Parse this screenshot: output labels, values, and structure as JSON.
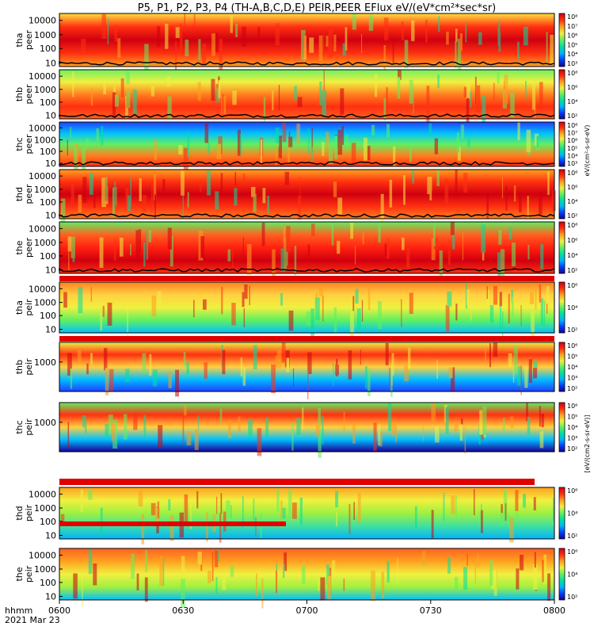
{
  "chart_data": {
    "type": "heatmap",
    "title": "P5, P1, P2, P3, P4 (TH-A,B,C,D,E) PEIR,PEER EFlux eV/(eV*cm²*sec*sr)",
    "time_label": "hhmm",
    "date_label": "2021 Mar 23",
    "x_ticks": [
      "0600",
      "0630",
      "0700",
      "0730",
      "0800"
    ],
    "xlim": [
      "06:00",
      "08:00"
    ],
    "colorbar_unit_electron": "eV/(cm²-s-sr-eV)",
    "colorbar_unit_ion": "[eV/(cm2-s-sr-eV)]",
    "panels": [
      {
        "name": "tha peer",
        "y_ticks": [
          "10000",
          "1000",
          "100",
          "10"
        ],
        "cb_ticks": [
          "10⁸",
          "10⁷",
          "10⁶",
          "10⁵",
          "10⁴",
          "10³"
        ],
        "ylim": [
          7,
          25000
        ],
        "log_y": true
      },
      {
        "name": "thb peer",
        "y_ticks": [
          "10000",
          "1000",
          "100",
          "10"
        ],
        "cb_ticks": [
          "10⁸",
          "10⁶",
          "10⁴",
          "10²"
        ],
        "ylim": [
          7,
          25000
        ],
        "log_y": true
      },
      {
        "name": "thc peer",
        "y_ticks": [
          "10000",
          "1000",
          "100",
          "10"
        ],
        "cb_ticks": [
          "10⁸",
          "10⁷",
          "10⁶",
          "10⁵",
          "10⁴",
          "10³"
        ],
        "ylim": [
          7,
          25000
        ],
        "log_y": true
      },
      {
        "name": "thd peer",
        "y_ticks": [
          "10000",
          "1000",
          "100",
          "10"
        ],
        "cb_ticks": [
          "10⁸",
          "10⁶",
          "10⁴",
          "10²"
        ],
        "ylim": [
          7,
          25000
        ],
        "log_y": true
      },
      {
        "name": "the peer",
        "y_ticks": [
          "10000",
          "1000",
          "100",
          "10"
        ],
        "cb_ticks": [
          "10⁸",
          "10⁶",
          "10⁴",
          "10²"
        ],
        "ylim": [
          7,
          25000
        ],
        "log_y": true
      },
      {
        "name": "tha peir",
        "y_ticks": [
          "10000",
          "1000",
          "100",
          "10"
        ],
        "cb_ticks": [
          "10⁶",
          "10⁴",
          "10²"
        ],
        "ylim": [
          7,
          25000
        ],
        "log_y": true
      },
      {
        "name": "thb peir",
        "y_ticks": [
          "1000"
        ],
        "cb_ticks": [
          "10⁶",
          "10⁵",
          "10⁴",
          "10³",
          "10²"
        ],
        "ylim": [
          7,
          25000
        ],
        "log_y": true
      },
      {
        "name": "thc peir",
        "y_ticks": [
          "1000"
        ],
        "cb_ticks": [
          "10⁶",
          "10⁵",
          "10⁴",
          "10³",
          "10²"
        ],
        "ylim": [
          7,
          25000
        ],
        "log_y": true
      },
      {
        "name": "thd peir",
        "y_ticks": [
          "10000",
          "1000",
          "100",
          "10"
        ],
        "cb_ticks": [
          "10⁶",
          "10⁴",
          "10²"
        ],
        "ylim": [
          7,
          25000
        ],
        "log_y": true
      },
      {
        "name": "the peir",
        "y_ticks": [
          "10000",
          "1000",
          "100",
          "10"
        ],
        "cb_ticks": [
          "10⁶",
          "10⁴",
          "10²"
        ],
        "ylim": [
          7,
          25000
        ],
        "log_y": true
      }
    ],
    "colormap": [
      "#1a0096",
      "#0040ff",
      "#00b4ff",
      "#00e0a0",
      "#60f060",
      "#f0f040",
      "#ffa020",
      "#ff3010",
      "#d00010"
    ]
  }
}
